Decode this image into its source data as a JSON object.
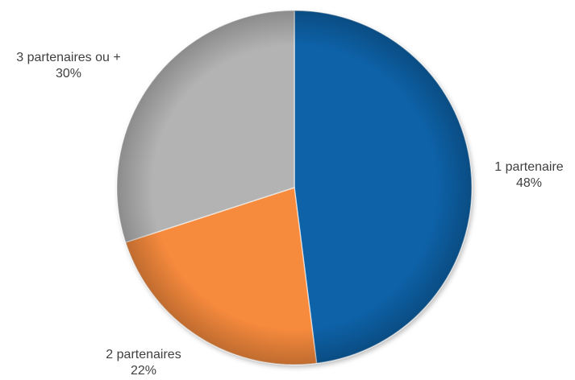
{
  "chart_data": {
    "type": "pie",
    "title": "",
    "categories": [
      "1 partenaire",
      "2 partenaires",
      "3 partenaires ou +"
    ],
    "values": [
      48,
      22,
      30
    ],
    "value_labels": [
      "48%",
      "22%",
      "30%"
    ],
    "colors": [
      "#0A62A8",
      "#F68A3C",
      "#B3B3B3"
    ],
    "legend": "none",
    "start_angle_deg": 0,
    "direction": "clockwise"
  }
}
